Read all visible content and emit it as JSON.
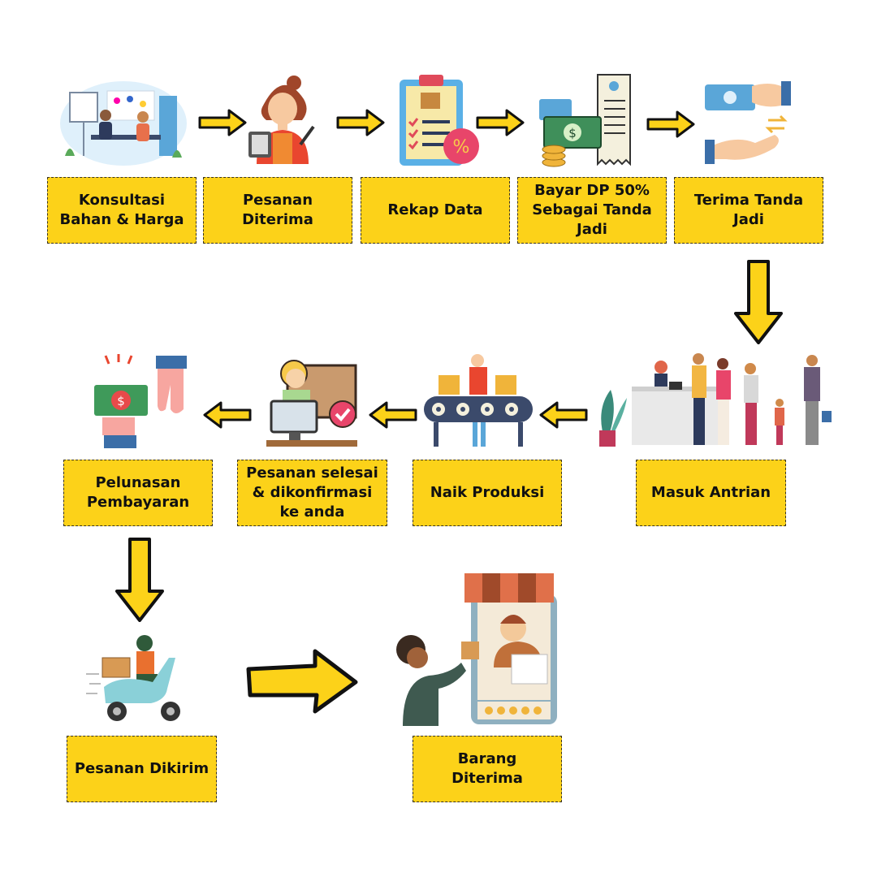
{
  "colors": {
    "box_fill": "#fcd219",
    "arrow_fill": "#fcd219",
    "arrow_outline": "#111111",
    "text": "#111111"
  },
  "steps": [
    {
      "label": "Konsultasi\nBahan & Harga",
      "icon": "consultation-meeting-icon"
    },
    {
      "label": "Pesanan\nDiterima",
      "icon": "waitress-taking-order-icon"
    },
    {
      "label": "Rekap Data",
      "icon": "clipboard-checklist-icon"
    },
    {
      "label": "Bayar DP 50%\nSebagai Tanda\nJadi",
      "icon": "money-receipt-icon"
    },
    {
      "label": "Terima Tanda\nJadi",
      "icon": "hand-receiving-money-icon"
    },
    {
      "label": "Masuk Antrian",
      "icon": "people-queue-icon"
    },
    {
      "label": "Naik Produksi",
      "icon": "production-conveyor-icon"
    },
    {
      "label": "Pesanan selesai\n& dikonfirmasi\nke anda",
      "icon": "confirmation-worker-icon"
    },
    {
      "label": "Pelunasan\nPembayaran",
      "icon": "payment-handover-icon"
    },
    {
      "label": "Pesanan Dikirim",
      "icon": "delivery-scooter-icon"
    },
    {
      "label": "Barang Diterima",
      "icon": "shop-receive-goods-icon"
    }
  ]
}
